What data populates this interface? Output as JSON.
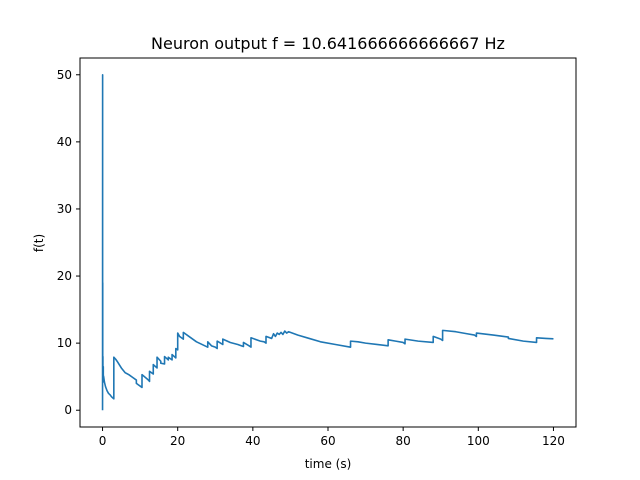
{
  "chart_data": {
    "type": "line",
    "title": "Neuron output f = 10.641666666666667 Hz",
    "xlabel": "time (s)",
    "ylabel": "f(t)",
    "xlim": [
      -6,
      126
    ],
    "ylim": [
      -2.5,
      52.5
    ],
    "xticks": [
      0,
      20,
      40,
      60,
      80,
      100,
      120
    ],
    "yticks": [
      0,
      10,
      20,
      30,
      40,
      50
    ],
    "grid": false,
    "series": [
      {
        "color": "#1f77b4",
        "x": [
          0,
          0.02,
          0.02,
          0.05,
          0.05,
          0.1,
          0.1,
          0.2,
          0.2,
          0.3,
          0.5,
          0.8,
          1.2,
          1.6,
          2.0,
          2.4,
          2.8,
          3.0,
          3.0,
          3.5,
          4.0,
          5.0,
          6.0,
          7.0,
          8.0,
          9.0,
          9.0,
          9.5,
          10.0,
          10.5,
          10.5,
          12.0,
          12.5,
          12.5,
          13.5,
          13.5,
          14.5,
          14.5,
          15.5,
          15.5,
          16.5,
          16.5,
          17.5,
          17.5,
          18.5,
          18.5,
          19.5,
          19.5,
          20.0,
          20.0,
          20.5,
          21.0,
          21.5,
          21.5,
          23.0,
          25.0,
          28.0,
          28.0,
          29.0,
          30.0,
          30.5,
          30.5,
          32.0,
          32.0,
          34.0,
          36.0,
          37.0,
          37.5,
          37.5,
          39.0,
          39.5,
          39.5,
          42.0,
          43.0,
          43.5,
          43.5,
          45.0,
          45.5,
          46.0,
          46.5,
          47.0,
          47.5,
          48.0,
          48.5,
          49.0,
          49.5,
          50.0,
          52.0,
          55.0,
          58.0,
          62.0,
          66.0,
          66.0,
          68.0,
          70.0,
          73.0,
          76.0,
          76.0,
          78.0,
          80.0,
          80.5,
          80.5,
          84.0,
          88.0,
          88.0,
          90.0,
          90.5,
          90.5,
          94.0,
          97.0,
          99.0,
          99.5,
          99.5,
          104.0,
          108.0,
          108.0,
          112.0,
          115.5,
          115.5,
          118.0,
          120.0
        ],
        "y": [
          0,
          50,
          6,
          19,
          5,
          8,
          4.2,
          6.5,
          5.2,
          5.0,
          4.2,
          3.5,
          2.9,
          2.5,
          2.3,
          2.0,
          1.8,
          1.7,
          7.9,
          7.6,
          7.2,
          6.3,
          5.6,
          5.3,
          4.9,
          4.5,
          4.0,
          3.8,
          3.6,
          3.4,
          5.3,
          4.6,
          4.3,
          5.8,
          5.4,
          6.8,
          6.3,
          7.9,
          7.3,
          7.0,
          6.9,
          8.0,
          7.5,
          7.9,
          7.5,
          8.3,
          7.8,
          9.2,
          9.0,
          11.5,
          11.0,
          10.8,
          10.6,
          11.6,
          11.0,
          10.2,
          9.4,
          10.2,
          9.6,
          9.4,
          9.2,
          10.3,
          9.8,
          10.6,
          10.1,
          9.8,
          9.6,
          9.5,
          10.1,
          9.6,
          9.4,
          10.8,
          10.3,
          10.2,
          10.0,
          11.0,
          10.7,
          11.4,
          11.0,
          11.5,
          11.3,
          11.6,
          11.3,
          11.8,
          11.5,
          11.7,
          11.6,
          11.2,
          10.7,
          10.2,
          9.8,
          9.4,
          10.3,
          10.2,
          10.0,
          9.8,
          9.6,
          10.5,
          10.3,
          10.1,
          9.9,
          10.6,
          10.3,
          10.1,
          11.0,
          10.6,
          10.4,
          11.9,
          11.7,
          11.4,
          11.2,
          11.0,
          11.5,
          11.2,
          10.9,
          10.7,
          10.3,
          10.1,
          10.8,
          10.7,
          10.64
        ]
      }
    ]
  }
}
